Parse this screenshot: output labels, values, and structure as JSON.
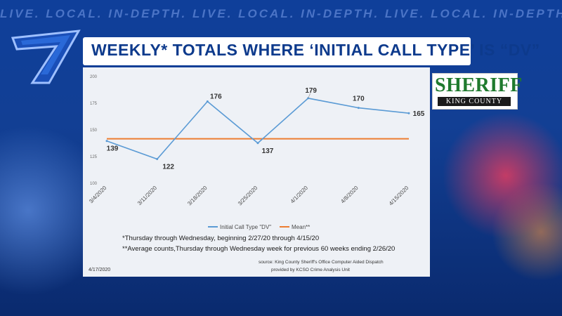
{
  "tagline": "LIVE. LOCAL. IN-DEPTH.  LIVE. LOCAL. IN-DEPTH.  LIVE. LOCAL. IN-DEPTH.  LIVE. LOCAL. IN-DEPTH.",
  "headline": "WEEKLY* TOTALS WHERE ‘INITIAL CALL TYPE’ IS “DV”",
  "sheriff_badge": {
    "word": "SHERIFF",
    "county": "KING COUNTY"
  },
  "chart_data": {
    "type": "line",
    "categories": [
      "3/4/2020",
      "3/11/2020",
      "3/18/2020",
      "3/25/2020",
      "4/1/2020",
      "4/8/2020",
      "4/15/2020"
    ],
    "series": [
      {
        "name": "Initial Call Type \"DV\"",
        "values": [
          139,
          122,
          176,
          137,
          179,
          170,
          165
        ],
        "color": "#5b9bd5"
      },
      {
        "name": "Mean**",
        "values": [
          141,
          141,
          141,
          141,
          141,
          141,
          141
        ],
        "color": "#ed7d31"
      }
    ],
    "data_labels": [
      "139",
      "122",
      "176",
      "137",
      "179",
      "170",
      "165"
    ],
    "ylim": [
      100,
      200
    ],
    "yticks": [
      "100",
      "125",
      "150",
      "175",
      "200"
    ],
    "legend_position": "bottom",
    "footnotes": [
      "*Thursday through Wednesday, beginning 2/27/20 through 4/15/20",
      "**Average counts,Thursday through Wednesday week for previous 60 weeks ending 2/26/20"
    ],
    "source_lines": [
      "source: King County Sheriff's Office Computer Aided Dispatch",
      "provided by KCSO Crime Analysis Unit"
    ],
    "date": "4/17/2020"
  }
}
